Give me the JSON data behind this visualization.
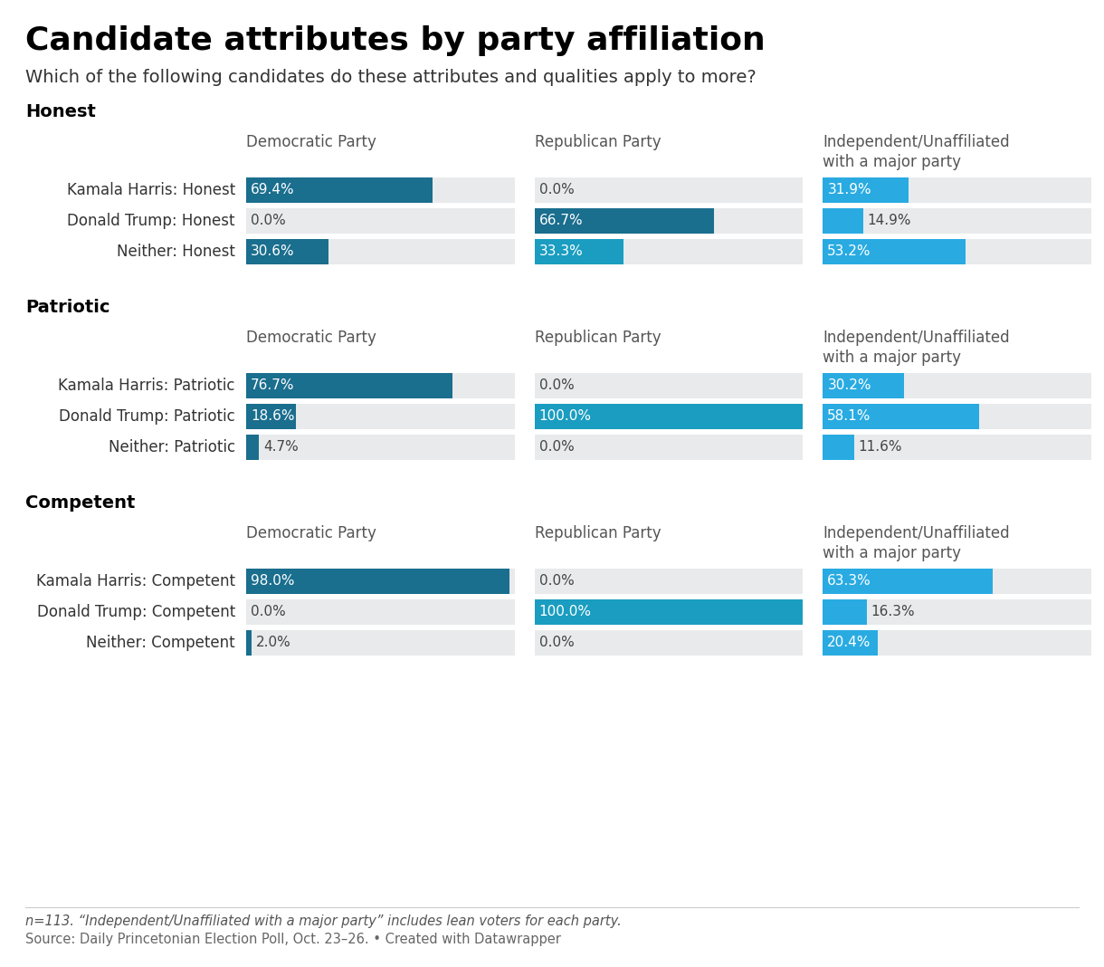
{
  "title": "Candidate attributes by party affiliation",
  "subtitle": "Which of the following candidates do these attributes and qualities apply to more?",
  "footnote1": "n=113. “Independent/Unaffiliated with a major party” includes lean voters for each party.",
  "footnote2": "Source: Daily Princetonian Election Poll, Oct. 23–26. • Created with Datawrapper",
  "sections": [
    {
      "label": "Honest",
      "rows": [
        {
          "name": "Kamala Harris: Honest",
          "values": [
            69.4,
            0.0,
            31.9
          ],
          "colors": [
            "#1a6e8e",
            null,
            "#29abe2"
          ]
        },
        {
          "name": "Donald Trump: Honest",
          "values": [
            0.0,
            66.7,
            14.9
          ],
          "colors": [
            null,
            "#1a6e8e",
            "#29abe2"
          ]
        },
        {
          "name": "Neither: Honest",
          "values": [
            30.6,
            33.3,
            53.2
          ],
          "colors": [
            "#1a6e8e",
            "#1a9dc0",
            "#29abe2"
          ]
        }
      ]
    },
    {
      "label": "Patriotic",
      "rows": [
        {
          "name": "Kamala Harris: Patriotic",
          "values": [
            76.7,
            0.0,
            30.2
          ],
          "colors": [
            "#1a6e8e",
            null,
            "#29abe2"
          ]
        },
        {
          "name": "Donald Trump: Patriotic",
          "values": [
            18.6,
            100.0,
            58.1
          ],
          "colors": [
            "#1a6e8e",
            "#1a9dc0",
            "#29abe2"
          ]
        },
        {
          "name": "Neither: Patriotic",
          "values": [
            4.7,
            0.0,
            11.6
          ],
          "colors": [
            "#1a6e8e",
            null,
            "#29abe2"
          ]
        }
      ]
    },
    {
      "label": "Competent",
      "rows": [
        {
          "name": "Kamala Harris: Competent",
          "values": [
            98.0,
            0.0,
            63.3
          ],
          "colors": [
            "#1a6e8e",
            null,
            "#29abe2"
          ]
        },
        {
          "name": "Donald Trump: Competent",
          "values": [
            0.0,
            100.0,
            16.3
          ],
          "colors": [
            null,
            "#1a9dc0",
            "#29abe2"
          ]
        },
        {
          "name": "Neither: Competent",
          "values": [
            2.0,
            0.0,
            20.4
          ],
          "colors": [
            "#1a6e8e",
            null,
            "#29abe2"
          ]
        }
      ]
    }
  ],
  "col_labels": [
    "Democratic Party",
    "Republican Party",
    "Independent/Unaffiliated\nwith a major party"
  ],
  "bar_bg_color": "#e8eaeb",
  "bar_max": 100,
  "col_label_color": "#555555",
  "section_label_color": "#000000",
  "row_label_color": "#333333",
  "value_label_inside_color": "#ffffff",
  "value_label_outside_color": "#444444",
  "background_color": "#ffffff",
  "dark_blue": "#1a6e8e",
  "medium_blue": "#1a9dc0",
  "light_blue": "#29abe2"
}
